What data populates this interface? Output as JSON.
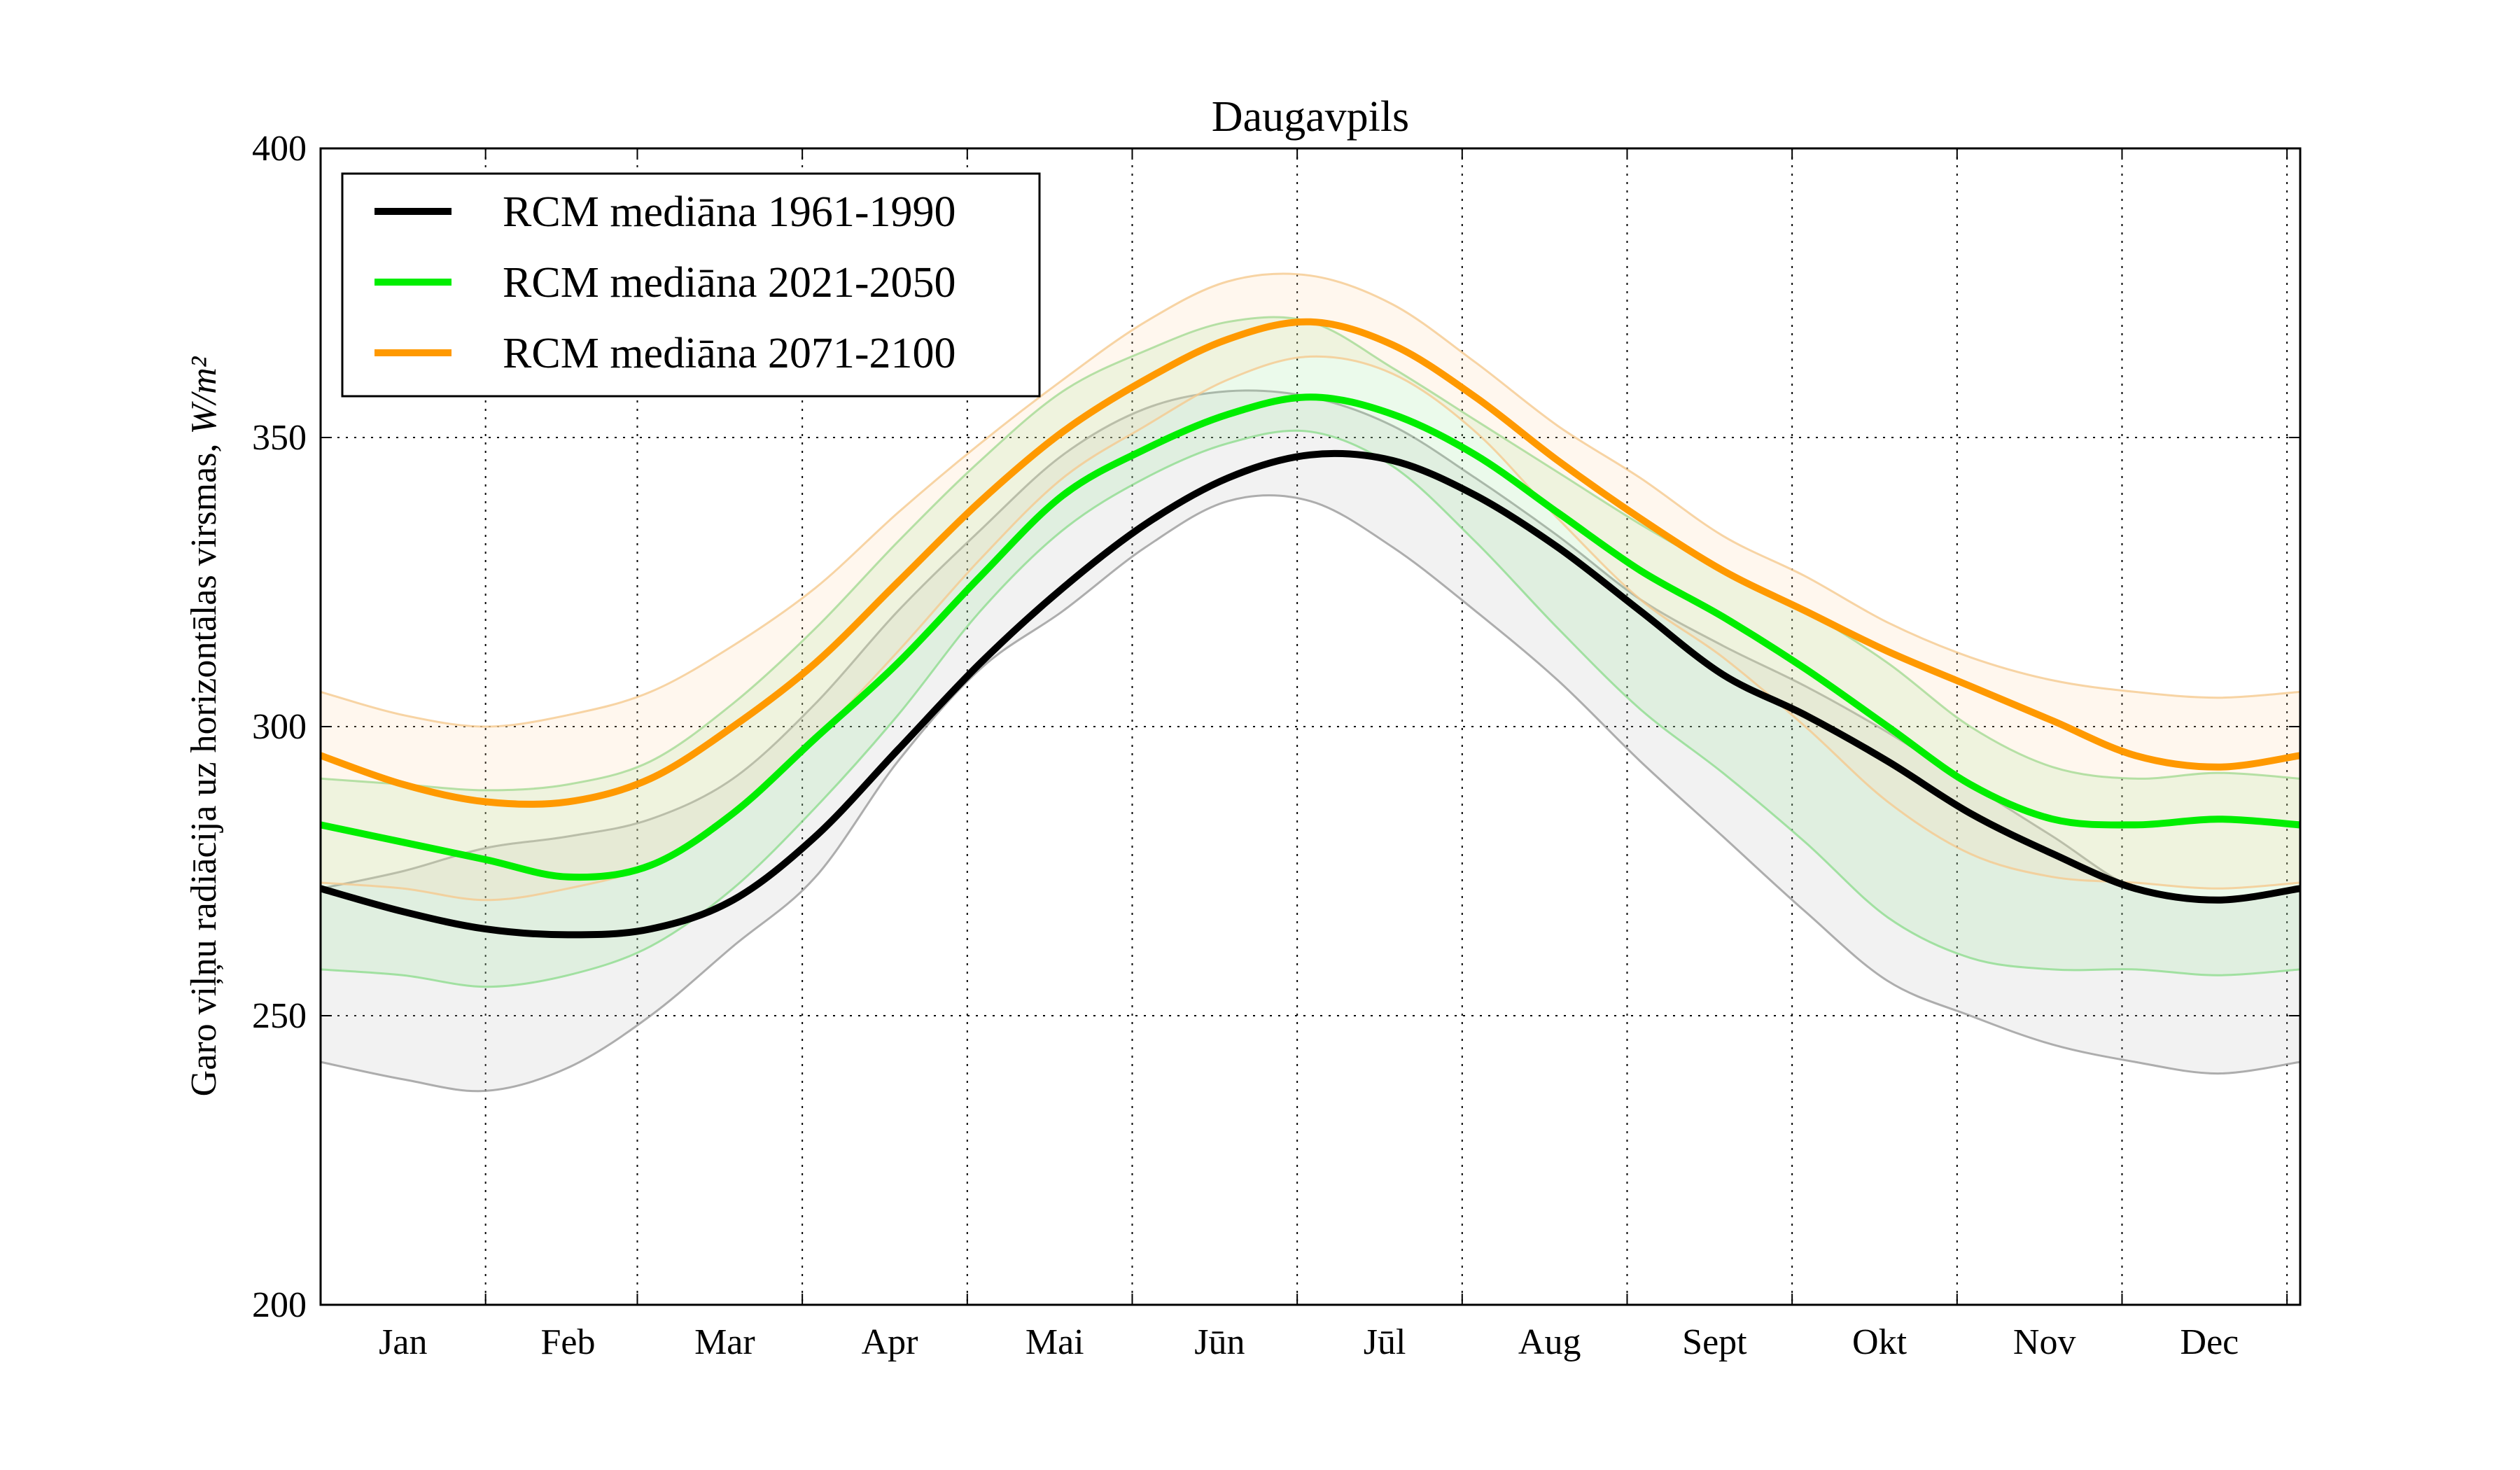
{
  "chart_data": {
    "type": "line",
    "title": "Daugavpils",
    "xlabel": "",
    "ylabel": "Garo viļņu radiācija uz horizontālas virsmas,",
    "ylabel_unit": "W/m²",
    "ylim": [
      200,
      400
    ],
    "yticks": [
      200,
      250,
      300,
      350,
      400
    ],
    "xlim": [
      0.5,
      12.5
    ],
    "month_boundaries": [
      0.5,
      1.5,
      2.42,
      3.42,
      4.42,
      5.42,
      6.42,
      7.42,
      8.42,
      9.42,
      10.42,
      11.42,
      12.42
    ],
    "categories": [
      "Jan",
      "Feb",
      "Mar",
      "Apr",
      "Mai",
      "Jūn",
      "Jūl",
      "Aug",
      "Sept",
      "Okt",
      "Nov",
      "Dec"
    ],
    "category_x": [
      1,
      2,
      2.95,
      3.95,
      4.95,
      5.95,
      6.95,
      7.95,
      8.95,
      9.95,
      10.95,
      11.95
    ],
    "grid": true,
    "legend_position": "top-left",
    "x": [
      0.5,
      1.0,
      1.5,
      2.0,
      2.5,
      3.0,
      3.5,
      4.0,
      4.5,
      5.0,
      5.5,
      6.0,
      6.5,
      7.0,
      7.5,
      8.0,
      8.5,
      9.0,
      9.5,
      10.0,
      10.5,
      11.0,
      11.5,
      12.0,
      12.5
    ],
    "series": [
      {
        "name": "RCM mediāna 1961-1990",
        "color": "#000000",
        "values": [
          272,
          268,
          265,
          264,
          265,
          270,
          281,
          296,
          311,
          324,
          335,
          343,
          347,
          346,
          340,
          331,
          320,
          309,
          302,
          294,
          285,
          278,
          272,
          270,
          272
        ],
        "band_low": [
          242,
          239,
          237,
          241,
          250,
          262,
          274,
          294,
          310,
          320,
          331,
          339,
          339,
          331,
          320,
          308,
          294,
          281,
          268,
          256,
          250,
          245,
          242,
          240,
          242
        ],
        "band_high": [
          272,
          275,
          279,
          281,
          284,
          291,
          304,
          320,
          334,
          347,
          355,
          358,
          357,
          352,
          343,
          333,
          322,
          314,
          307,
          299,
          290,
          281,
          272,
          270,
          272
        ]
      },
      {
        "name": "RCM mediāna 2021-2050",
        "color": "#00ee00",
        "values": [
          283,
          280,
          277,
          274,
          276,
          285,
          298,
          311,
          326,
          340,
          348,
          354,
          357,
          354,
          347,
          337,
          327,
          319,
          310,
          300,
          290,
          284,
          283,
          284,
          283
        ],
        "band_low": [
          258,
          257,
          255,
          257,
          262,
          272,
          286,
          302,
          320,
          334,
          343,
          349,
          351,
          345,
          332,
          317,
          303,
          292,
          280,
          267,
          260,
          258,
          258,
          257,
          258
        ],
        "band_high": [
          291,
          290,
          289,
          290,
          294,
          304,
          317,
          332,
          346,
          358,
          365,
          370,
          370,
          362,
          353,
          344,
          335,
          327,
          320,
          311,
          300,
          293,
          291,
          292,
          291
        ]
      },
      {
        "name": "RCM mediāna 2071-2100",
        "color": "#ff9900",
        "values": [
          295,
          290,
          287,
          287,
          291,
          300,
          311,
          325,
          339,
          351,
          360,
          367,
          370,
          366,
          357,
          346,
          336,
          327,
          320,
          313,
          307,
          301,
          295,
          293,
          295
        ],
        "band_low": [
          273,
          272,
          270,
          272,
          276,
          285,
          298,
          313,
          329,
          343,
          352,
          360,
          364,
          361,
          351,
          336,
          322,
          312,
          300,
          287,
          278,
          274,
          273,
          272,
          273
        ],
        "band_high": [
          306,
          302,
          300,
          302,
          306,
          314,
          324,
          337,
          349,
          360,
          370,
          377,
          378,
          373,
          363,
          352,
          343,
          333,
          326,
          318,
          312,
          308,
          306,
          305,
          306
        ]
      }
    ]
  }
}
